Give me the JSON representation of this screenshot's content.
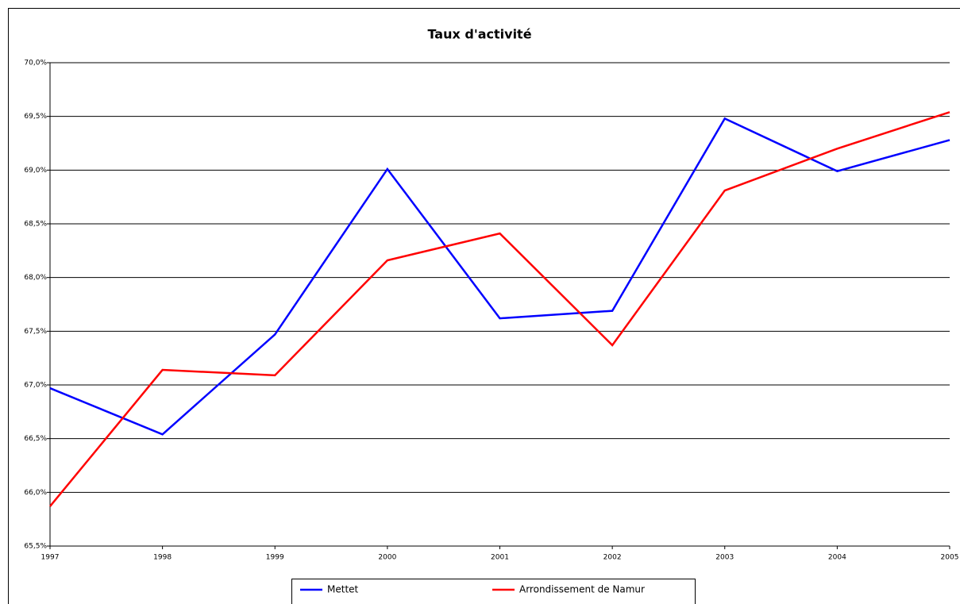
{
  "chart_data": {
    "type": "line",
    "title": "Taux d'activité",
    "categories": [
      "1997",
      "1998",
      "1999",
      "2000",
      "2001",
      "2002",
      "2003",
      "2004",
      "2005"
    ],
    "series": [
      {
        "name": "Mettet",
        "color": "#0000ff",
        "values": [
          66.97,
          66.54,
          67.47,
          69.01,
          67.62,
          67.69,
          69.48,
          68.99,
          69.28
        ]
      },
      {
        "name": "Arrondissement de Namur",
        "color": "#ff0000",
        "values": [
          65.87,
          67.14,
          67.09,
          68.16,
          68.41,
          67.37,
          68.81,
          69.2,
          69.54
        ]
      }
    ],
    "ylim": [
      65.5,
      70.0
    ],
    "yticks": [
      {
        "value": 65.5,
        "label": "65,5%"
      },
      {
        "value": 66.0,
        "label": "66,0%"
      },
      {
        "value": 66.5,
        "label": "66,5%"
      },
      {
        "value": 67.0,
        "label": "67,0%"
      },
      {
        "value": 67.5,
        "label": "67,5%"
      },
      {
        "value": 68.0,
        "label": "68,0%"
      },
      {
        "value": 68.5,
        "label": "68,5%"
      },
      {
        "value": 69.0,
        "label": "69,0%"
      },
      {
        "value": 69.5,
        "label": "69,5%"
      },
      {
        "value": 70.0,
        "label": "70,0%"
      }
    ],
    "grid": true,
    "legend": "bottom"
  }
}
